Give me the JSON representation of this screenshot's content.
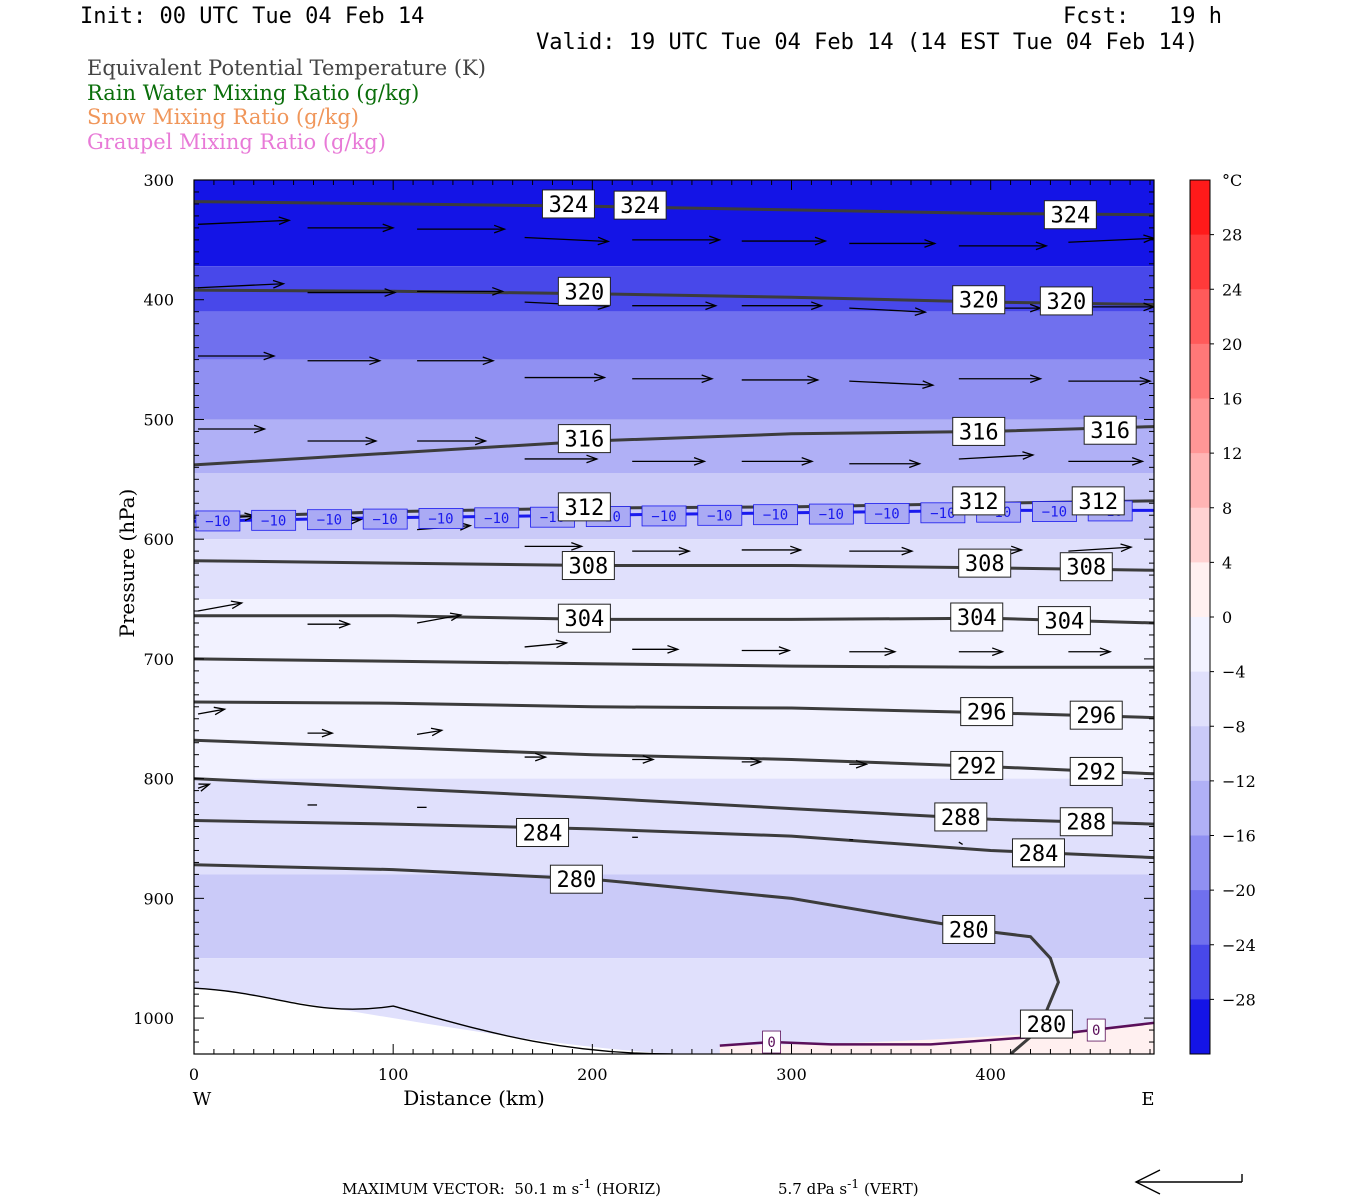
{
  "header": {
    "init": "Init: 00 UTC Tue 04 Feb 14",
    "fcst": "Fcst:   19 h",
    "valid": "Valid: 19 UTC Tue 04 Feb 14 (14 EST Tue 04 Feb 14)"
  },
  "legend": [
    {
      "label": "Equivalent Potential Temperature (K)",
      "color": "#444444"
    },
    {
      "label": "Rain Water Mixing Ratio (g/kg)",
      "color": "#0a6e0a"
    },
    {
      "label": "Snow Mixing Ratio (g/kg)",
      "color": "#f0965a"
    },
    {
      "label": "Graupel Mixing Ratio (g/kg)",
      "color": "#e87ad7"
    }
  ],
  "footer": {
    "max_vector": "MAXIMUM VECTOR:  50.1 m s",
    "horiz": "(HORIZ)",
    "vert": "5.7 dPa s",
    "vert_suffix": "(VERT)",
    "sup": "-1"
  },
  "chart_data": {
    "type": "contour",
    "xlabel": "Distance (km)",
    "ylabel": "Pressure (hPa)",
    "x_ticks": [
      0,
      100,
      200,
      300,
      400
    ],
    "y_ticks": [
      300,
      400,
      500,
      600,
      700,
      800,
      900,
      1000
    ],
    "xlim": [
      0,
      482
    ],
    "ylim": [
      300,
      1030
    ],
    "y_inverted": true,
    "x_end_labels": {
      "left": "W",
      "right": "E"
    },
    "colorbar": {
      "unit": "°C",
      "tick_labels": [
        "28",
        "24",
        "20",
        "16",
        "12",
        "8",
        "4",
        "0",
        "−4",
        "−8",
        "−12",
        "−16",
        "−20",
        "−24",
        "−28"
      ],
      "levels": [
        32,
        28,
        24,
        20,
        16,
        12,
        8,
        4,
        0,
        -4,
        -8,
        -12,
        -16,
        -20,
        -24,
        -28,
        -32
      ],
      "colors": [
        "#ff1a1a",
        "#ff3a3a",
        "#ff5a5a",
        "#ff7878",
        "#ff9696",
        "#ffb4b4",
        "#ffd2d2",
        "#fff0f0",
        "#f2f2ff",
        "#e0e0fc",
        "#cacaf8",
        "#b0b0f6",
        "#9090f2",
        "#7070ee",
        "#4848ea",
        "#1414e6"
      ]
    },
    "temperature_bands": [
      {
        "p_top": 300,
        "p_bottom": 372,
        "value": -30
      },
      {
        "p_top": 372,
        "p_bottom": 410,
        "value": -26
      },
      {
        "p_top": 410,
        "p_bottom": 450,
        "value": -22
      },
      {
        "p_top": 450,
        "p_bottom": 500,
        "value": -18
      },
      {
        "p_top": 500,
        "p_bottom": 545,
        "value": -14
      },
      {
        "p_top": 545,
        "p_bottom": 600,
        "value": -10
      },
      {
        "p_top": 600,
        "p_bottom": 650,
        "value": -6
      },
      {
        "p_top": 650,
        "p_bottom": 690,
        "value": -2
      },
      {
        "p_top": 690,
        "p_bottom": 800,
        "value": -1
      },
      {
        "p_top": 800,
        "p_bottom": 880,
        "value": -6
      },
      {
        "p_top": 880,
        "p_bottom": 950,
        "value": -10
      },
      {
        "p_top": 950,
        "p_bottom": 1030,
        "value": -6
      }
    ],
    "theta_e_contours": [
      {
        "value": 324,
        "x": [
          0,
          100,
          200,
          300,
          400,
          482
        ],
        "p": [
          318,
          320,
          322,
          325,
          328,
          329
        ],
        "labels": [
          {
            "x": 188,
            "p": 320
          },
          {
            "x": 224,
            "p": 321
          },
          {
            "x": 440,
            "p": 329
          }
        ]
      },
      {
        "value": 320,
        "x": [
          0,
          100,
          200,
          300,
          400,
          482
        ],
        "p": [
          392,
          393,
          395,
          398,
          402,
          404
        ],
        "labels": [
          {
            "x": 196,
            "p": 393
          },
          {
            "x": 394,
            "p": 400
          },
          {
            "x": 438,
            "p": 401
          }
        ]
      },
      {
        "value": 316,
        "x": [
          0,
          100,
          200,
          300,
          400,
          482
        ],
        "p": [
          538,
          528,
          518,
          512,
          510,
          506
        ],
        "labels": [
          {
            "x": 196,
            "p": 516
          },
          {
            "x": 394,
            "p": 510
          },
          {
            "x": 460,
            "p": 509
          }
        ]
      },
      {
        "value": 312,
        "x": [
          0,
          100,
          200,
          300,
          400,
          482
        ],
        "p": [
          582,
          577,
          574,
          573,
          570,
          568
        ],
        "labels": [
          {
            "x": 196,
            "p": 573
          },
          {
            "x": 394,
            "p": 568
          },
          {
            "x": 454,
            "p": 568
          }
        ]
      },
      {
        "value": 308,
        "x": [
          0,
          100,
          200,
          300,
          400,
          482
        ],
        "p": [
          618,
          620,
          622,
          622,
          624,
          626
        ],
        "labels": [
          {
            "x": 198,
            "p": 622
          },
          {
            "x": 397,
            "p": 620
          },
          {
            "x": 448,
            "p": 623
          }
        ]
      },
      {
        "value": 304,
        "x": [
          0,
          100,
          200,
          300,
          400,
          482
        ],
        "p": [
          664,
          664,
          667,
          667,
          666,
          670
        ],
        "labels": [
          {
            "x": 196,
            "p": 666
          },
          {
            "x": 393,
            "p": 665
          },
          {
            "x": 437,
            "p": 668
          }
        ]
      },
      {
        "value": 300,
        "x": [
          0,
          100,
          200,
          300,
          400,
          482
        ],
        "p": [
          700,
          702,
          704,
          706,
          707,
          707
        ],
        "labels": []
      },
      {
        "value": 296,
        "x": [
          0,
          100,
          200,
          300,
          400,
          482
        ],
        "p": [
          736,
          737,
          740,
          741,
          745,
          749
        ],
        "labels": [
          {
            "x": 398,
            "p": 744
          },
          {
            "x": 453,
            "p": 747
          }
        ]
      },
      {
        "value": 292,
        "x": [
          0,
          100,
          200,
          300,
          400,
          482
        ],
        "p": [
          768,
          774,
          780,
          784,
          790,
          796
        ],
        "labels": [
          {
            "x": 393,
            "p": 789
          },
          {
            "x": 453,
            "p": 794
          }
        ]
      },
      {
        "value": 288,
        "x": [
          0,
          100,
          200,
          300,
          400,
          482
        ],
        "p": [
          800,
          808,
          816,
          825,
          834,
          838
        ],
        "labels": [
          {
            "x": 385,
            "p": 832
          },
          {
            "x": 448,
            "p": 836
          }
        ]
      },
      {
        "value": 284,
        "x": [
          0,
          100,
          200,
          300,
          400,
          482
        ],
        "p": [
          835,
          838,
          842,
          848,
          860,
          866
        ],
        "labels": [
          {
            "x": 175,
            "p": 845
          },
          {
            "x": 424,
            "p": 862
          }
        ]
      },
      {
        "value": 280,
        "x": [
          0,
          100,
          200,
          300,
          400,
          420,
          430,
          434,
          424,
          410
        ],
        "p": [
          872,
          876,
          884,
          900,
          928,
          932,
          950,
          970,
          1010,
          1030
        ],
        "labels": [
          {
            "x": 192,
            "p": 884
          },
          {
            "x": 389,
            "p": 926
          },
          {
            "x": 428,
            "p": 1005
          }
        ]
      }
    ],
    "minus10_isotherm": {
      "value": -10,
      "x": [
        0,
        100,
        200,
        300,
        400,
        482
      ],
      "p": [
        585,
        582,
        580,
        578,
        576,
        576
      ]
    },
    "zero_isotherm": {
      "value": 0,
      "x": [
        264,
        290,
        320,
        370,
        420,
        482
      ],
      "p": [
        1023,
        1020,
        1022,
        1022,
        1016,
        1004
      ]
    },
    "wind_vectors": [
      {
        "x": 0,
        "p": 337,
        "u": 48,
        "w": 0.5
      },
      {
        "x": 55,
        "p": 340,
        "u": 45,
        "w": 0
      },
      {
        "x": 110,
        "p": 341,
        "u": 46,
        "w": 0
      },
      {
        "x": 164,
        "p": 348,
        "u": 44,
        "w": -0.5
      },
      {
        "x": 218,
        "p": 350,
        "u": 46,
        "w": 0
      },
      {
        "x": 273,
        "p": 351,
        "u": 44,
        "w": 0
      },
      {
        "x": 327,
        "p": 353,
        "u": 45,
        "w": 0
      },
      {
        "x": 382,
        "p": 355,
        "u": 46,
        "w": 0
      },
      {
        "x": 437,
        "p": 352,
        "u": 45,
        "w": 0.5
      },
      {
        "x": 0,
        "p": 390,
        "u": 45,
        "w": 0.5
      },
      {
        "x": 55,
        "p": 394,
        "u": 46,
        "w": 0
      },
      {
        "x": 110,
        "p": 393,
        "u": 45,
        "w": 0
      },
      {
        "x": 164,
        "p": 402,
        "u": 44,
        "w": -0.5
      },
      {
        "x": 218,
        "p": 405,
        "u": 44,
        "w": 0
      },
      {
        "x": 273,
        "p": 405,
        "u": 42,
        "w": 0
      },
      {
        "x": 327,
        "p": 407,
        "u": 40,
        "w": -0.5
      },
      {
        "x": 382,
        "p": 407,
        "u": 43,
        "w": 0
      },
      {
        "x": 437,
        "p": 406,
        "u": 45,
        "w": 0
      },
      {
        "x": 0,
        "p": 447,
        "u": 40,
        "w": 0
      },
      {
        "x": 55,
        "p": 451,
        "u": 38,
        "w": 0
      },
      {
        "x": 110,
        "p": 451,
        "u": 40,
        "w": 0
      },
      {
        "x": 164,
        "p": 465,
        "u": 42,
        "w": 0
      },
      {
        "x": 218,
        "p": 466,
        "u": 42,
        "w": 0
      },
      {
        "x": 273,
        "p": 467,
        "u": 40,
        "w": 0
      },
      {
        "x": 327,
        "p": 468,
        "u": 44,
        "w": -0.5
      },
      {
        "x": 382,
        "p": 466,
        "u": 43,
        "w": 0
      },
      {
        "x": 437,
        "p": 468,
        "u": 43,
        "w": 0
      },
      {
        "x": 0,
        "p": 508,
        "u": 35,
        "w": 0
      },
      {
        "x": 55,
        "p": 518,
        "u": 36,
        "w": 0
      },
      {
        "x": 110,
        "p": 518,
        "u": 36,
        "w": 0
      },
      {
        "x": 164,
        "p": 533,
        "u": 38,
        "w": 0
      },
      {
        "x": 218,
        "p": 535,
        "u": 38,
        "w": 0
      },
      {
        "x": 273,
        "p": 535,
        "u": 37,
        "w": 0
      },
      {
        "x": 327,
        "p": 537,
        "u": 37,
        "w": 0
      },
      {
        "x": 382,
        "p": 533,
        "u": 39,
        "w": 0.5
      },
      {
        "x": 437,
        "p": 535,
        "u": 39,
        "w": 0
      },
      {
        "x": 0,
        "p": 584,
        "u": 30,
        "w": 0.5
      },
      {
        "x": 55,
        "p": 587,
        "u": 28,
        "w": 0.5
      },
      {
        "x": 110,
        "p": 592,
        "u": 28,
        "w": 0.5
      },
      {
        "x": 164,
        "p": 606,
        "u": 30,
        "w": 0
      },
      {
        "x": 218,
        "p": 610,
        "u": 30,
        "w": 0
      },
      {
        "x": 273,
        "p": 609,
        "u": 31,
        "w": 0
      },
      {
        "x": 327,
        "p": 610,
        "u": 33,
        "w": 0
      },
      {
        "x": 382,
        "p": 609,
        "u": 33,
        "w": 0
      },
      {
        "x": 437,
        "p": 610,
        "u": 33,
        "w": 0.5
      },
      {
        "x": 0,
        "p": 660,
        "u": 23,
        "w": 1
      },
      {
        "x": 55,
        "p": 671,
        "u": 22,
        "w": 0
      },
      {
        "x": 110,
        "p": 670,
        "u": 23,
        "w": 1
      },
      {
        "x": 164,
        "p": 690,
        "u": 22,
        "w": 0.5
      },
      {
        "x": 218,
        "p": 692,
        "u": 24,
        "w": 0
      },
      {
        "x": 273,
        "p": 693,
        "u": 25,
        "w": 0
      },
      {
        "x": 327,
        "p": 694,
        "u": 24,
        "w": 0
      },
      {
        "x": 382,
        "p": 694,
        "u": 23,
        "w": 0
      },
      {
        "x": 437,
        "p": 694,
        "u": 22,
        "w": 0
      },
      {
        "x": 0,
        "p": 746,
        "u": 14,
        "w": 0.6
      },
      {
        "x": 55,
        "p": 762,
        "u": 13,
        "w": 0
      },
      {
        "x": 110,
        "p": 763,
        "u": 13,
        "w": 0.5
      },
      {
        "x": 164,
        "p": 782,
        "u": 11,
        "w": 0
      },
      {
        "x": 218,
        "p": 784,
        "u": 11,
        "w": 0
      },
      {
        "x": 273,
        "p": 786,
        "u": 10,
        "w": 0
      },
      {
        "x": 327,
        "p": 788,
        "u": 9,
        "w": 0
      },
      {
        "x": 0,
        "p": 808,
        "u": 6,
        "w": 0.5
      },
      {
        "x": 55,
        "p": 822,
        "u": 5,
        "w": 0
      },
      {
        "x": 110,
        "p": 824,
        "u": 5,
        "w": 0
      },
      {
        "x": 164,
        "p": 848,
        "u": 4,
        "w": 0
      },
      {
        "x": 218,
        "p": 849,
        "u": 3,
        "w": 0
      },
      {
        "x": 327,
        "p": 851,
        "u": 2,
        "w": 0
      },
      {
        "x": 382,
        "p": 853,
        "u": 2,
        "w": -0.3
      }
    ],
    "max_vector_horiz": "50.1 m s-1",
    "max_vector_vert": "5.7 dPa s-1"
  }
}
